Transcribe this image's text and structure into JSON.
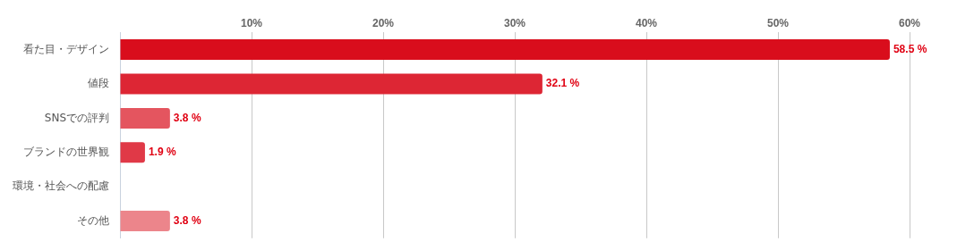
{
  "chart_data": {
    "type": "bar",
    "orientation": "horizontal",
    "categories": [
      "看た目・デザイン",
      "値段",
      "SNSでの評判",
      "ブランドの世界観",
      "環境・社会への配慮",
      "その他"
    ],
    "values": [
      58.5,
      32.1,
      3.8,
      1.9,
      0,
      3.8
    ],
    "colors": [
      "#d90d1c",
      "#dd2634",
      "#e4555f",
      "#e03947",
      "#e03947",
      "#ec858b"
    ],
    "value_labels": [
      "58.5 %",
      "32.1 %",
      "3.8 %",
      "1.9 %",
      null,
      "3.8 %"
    ],
    "xlim": [
      0,
      60
    ],
    "xticks": [
      {
        "value": 0,
        "label": null
      },
      {
        "value": 10,
        "label": "10%"
      },
      {
        "value": 20,
        "label": "20%"
      },
      {
        "value": 30,
        "label": "30%"
      },
      {
        "value": 40,
        "label": "40%"
      },
      {
        "value": 50,
        "label": "50%"
      },
      {
        "value": 60,
        "label": "60%"
      }
    ],
    "grid": "x",
    "legend": false
  }
}
